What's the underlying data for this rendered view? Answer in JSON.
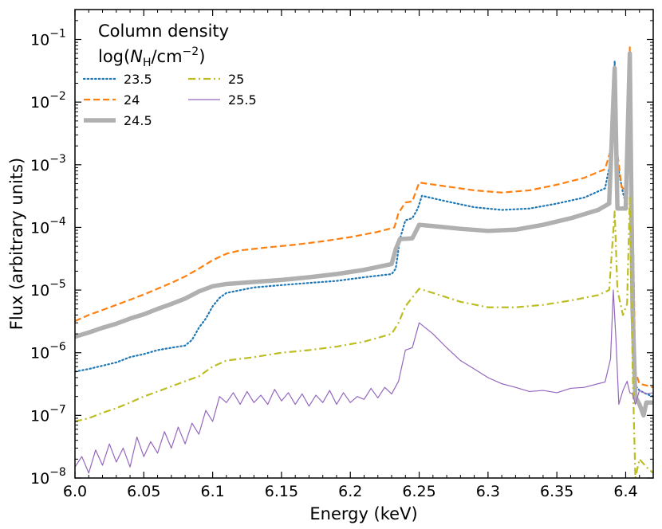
{
  "chart_data": {
    "type": "line",
    "xlabel": "Energy (keV)",
    "ylabel": "Flux (arbitrary units)",
    "xlim": [
      6.0,
      6.42
    ],
    "ylim": [
      1e-08,
      0.3
    ],
    "yscale": "log",
    "x_ticks": [
      "6.0",
      "6.05",
      "6.1",
      "6.15",
      "6.2",
      "6.25",
      "6.3",
      "6.35",
      "6.4"
    ],
    "y_ticks": [
      {
        "base": "10",
        "exp": "−8",
        "value": 1e-08
      },
      {
        "base": "10",
        "exp": "−7",
        "value": 1e-07
      },
      {
        "base": "10",
        "exp": "−6",
        "value": 1e-06
      },
      {
        "base": "10",
        "exp": "−5",
        "value": 1e-05
      },
      {
        "base": "10",
        "exp": "−4",
        "value": 0.0001
      },
      {
        "base": "10",
        "exp": "−3",
        "value": 0.001
      },
      {
        "base": "10",
        "exp": "−2",
        "value": 0.01
      },
      {
        "base": "10",
        "exp": "−1",
        "value": 0.1
      }
    ],
    "legend": {
      "title_line1": "Column density",
      "title_line2_prefix": "log(",
      "title_line2_N": "N",
      "title_line2_sub": "H",
      "title_line2_mid": "/cm",
      "title_line2_sup": "−2",
      "title_line2_suffix": ")",
      "placement": "top-left"
    },
    "series": [
      {
        "name": "23.5",
        "color": "#1f77b4",
        "style": "dotted",
        "points": [
          [
            6.0,
            5e-07
          ],
          [
            6.01,
            5.5e-07
          ],
          [
            6.02,
            6.2e-07
          ],
          [
            6.03,
            7e-07
          ],
          [
            6.04,
            8.5e-07
          ],
          [
            6.05,
            9.5e-07
          ],
          [
            6.06,
            1.1e-06
          ],
          [
            6.07,
            1.2e-06
          ],
          [
            6.08,
            1.3e-06
          ],
          [
            6.085,
            1.6e-06
          ],
          [
            6.09,
            2.5e-06
          ],
          [
            6.095,
            3.5e-06
          ],
          [
            6.1,
            5.5e-06
          ],
          [
            6.105,
            7.5e-06
          ],
          [
            6.11,
            9e-06
          ],
          [
            6.13,
            1.1e-05
          ],
          [
            6.15,
            1.2e-05
          ],
          [
            6.17,
            1.3e-05
          ],
          [
            6.19,
            1.4e-05
          ],
          [
            6.21,
            1.6e-05
          ],
          [
            6.23,
            1.8e-05
          ],
          [
            6.233,
            2.2e-05
          ],
          [
            6.236,
            6.5e-05
          ],
          [
            6.24,
            0.00013
          ],
          [
            6.245,
            0.00014
          ],
          [
            6.249,
            0.0002
          ],
          [
            6.252,
            0.00032
          ],
          [
            6.27,
            0.00026
          ],
          [
            6.29,
            0.00021
          ],
          [
            6.31,
            0.00019
          ],
          [
            6.33,
            0.0002
          ],
          [
            6.35,
            0.00024
          ],
          [
            6.37,
            0.0003
          ],
          [
            6.385,
            0.00042
          ],
          [
            6.39,
            0.0015
          ],
          [
            6.392,
            0.045
          ],
          [
            6.394,
            0.001
          ],
          [
            6.398,
            0.00036
          ],
          [
            6.401,
            0.0002
          ],
          [
            6.403,
            0.05
          ],
          [
            6.405,
            0.0002
          ],
          [
            6.407,
            3e-07
          ],
          [
            6.41,
            2.5e-07
          ],
          [
            6.415,
            2.2e-07
          ],
          [
            6.42,
            2e-07
          ]
        ]
      },
      {
        "name": "24",
        "color": "#ff7f0e",
        "style": "dashed",
        "points": [
          [
            6.0,
            3.2e-06
          ],
          [
            6.01,
            4e-06
          ],
          [
            6.02,
            4.8e-06
          ],
          [
            6.03,
            5.8e-06
          ],
          [
            6.04,
            7e-06
          ],
          [
            6.05,
            8.5e-06
          ],
          [
            6.06,
            1.05e-05
          ],
          [
            6.07,
            1.3e-05
          ],
          [
            6.08,
            1.65e-05
          ],
          [
            6.09,
            2.2e-05
          ],
          [
            6.1,
            3e-05
          ],
          [
            6.11,
            3.8e-05
          ],
          [
            6.12,
            4.3e-05
          ],
          [
            6.14,
            4.8e-05
          ],
          [
            6.16,
            5.3e-05
          ],
          [
            6.18,
            6e-05
          ],
          [
            6.2,
            7e-05
          ],
          [
            6.22,
            8.5e-05
          ],
          [
            6.232,
            0.0001
          ],
          [
            6.235,
            0.00017
          ],
          [
            6.24,
            0.00025
          ],
          [
            6.245,
            0.00026
          ],
          [
            6.25,
            0.00052
          ],
          [
            6.27,
            0.00045
          ],
          [
            6.29,
            0.00039
          ],
          [
            6.31,
            0.00036
          ],
          [
            6.33,
            0.00039
          ],
          [
            6.35,
            0.00048
          ],
          [
            6.37,
            0.00062
          ],
          [
            6.385,
            0.00085
          ],
          [
            6.39,
            0.002
          ],
          [
            6.392,
            0.032
          ],
          [
            6.394,
            0.0015
          ],
          [
            6.397,
            0.00045
          ],
          [
            6.401,
            0.00035
          ],
          [
            6.403,
            0.075
          ],
          [
            6.405,
            0.0002
          ],
          [
            6.407,
            5e-07
          ],
          [
            6.41,
            3.2e-07
          ],
          [
            6.415,
            3e-07
          ],
          [
            6.42,
            2.8e-07
          ]
        ]
      },
      {
        "name": "24.5",
        "color": "#b0b0b0",
        "style": "solid-thick",
        "points": [
          [
            6.0,
            1.8e-06
          ],
          [
            6.01,
            2.1e-06
          ],
          [
            6.02,
            2.5e-06
          ],
          [
            6.03,
            2.9e-06
          ],
          [
            6.04,
            3.5e-06
          ],
          [
            6.05,
            4.1e-06
          ],
          [
            6.06,
            5e-06
          ],
          [
            6.07,
            6e-06
          ],
          [
            6.08,
            7.3e-06
          ],
          [
            6.09,
            9.5e-06
          ],
          [
            6.1,
            1.15e-05
          ],
          [
            6.11,
            1.25e-05
          ],
          [
            6.13,
            1.35e-05
          ],
          [
            6.15,
            1.45e-05
          ],
          [
            6.17,
            1.6e-05
          ],
          [
            6.19,
            1.8e-05
          ],
          [
            6.21,
            2.1e-05
          ],
          [
            6.23,
            2.6e-05
          ],
          [
            6.233,
            4.5e-05
          ],
          [
            6.236,
            6.5e-05
          ],
          [
            6.245,
            6.7e-05
          ],
          [
            6.25,
            0.00011
          ],
          [
            6.26,
            0.000105
          ],
          [
            6.28,
            9.5e-05
          ],
          [
            6.3,
            8.8e-05
          ],
          [
            6.32,
            9.2e-05
          ],
          [
            6.34,
            0.00011
          ],
          [
            6.36,
            0.00014
          ],
          [
            6.38,
            0.00019
          ],
          [
            6.388,
            0.00024
          ],
          [
            6.392,
            0.035
          ],
          [
            6.394,
            0.0002
          ],
          [
            6.4,
            0.0002
          ],
          [
            6.403,
            0.06
          ],
          [
            6.405,
            5e-06
          ],
          [
            6.407,
            2e-07
          ],
          [
            6.41,
            1.5e-07
          ],
          [
            6.413,
            1e-07
          ],
          [
            6.415,
            1.6e-07
          ],
          [
            6.42,
            1.6e-07
          ]
        ]
      },
      {
        "name": "25",
        "color": "#bcbd22",
        "style": "dashdot",
        "points": [
          [
            6.0,
            8e-08
          ],
          [
            6.01,
            9e-08
          ],
          [
            6.02,
            1.1e-07
          ],
          [
            6.03,
            1.3e-07
          ],
          [
            6.04,
            1.6e-07
          ],
          [
            6.05,
            2e-07
          ],
          [
            6.06,
            2.4e-07
          ],
          [
            6.07,
            2.9e-07
          ],
          [
            6.08,
            3.5e-07
          ],
          [
            6.09,
            4.2e-07
          ],
          [
            6.1,
            6e-07
          ],
          [
            6.11,
            7.5e-07
          ],
          [
            6.13,
            8.5e-07
          ],
          [
            6.15,
            1e-06
          ],
          [
            6.17,
            1.1e-06
          ],
          [
            6.19,
            1.25e-06
          ],
          [
            6.21,
            1.5e-06
          ],
          [
            6.23,
            2e-06
          ],
          [
            6.235,
            3e-06
          ],
          [
            6.24,
            5.5e-06
          ],
          [
            6.25,
            1.05e-05
          ],
          [
            6.26,
            9e-06
          ],
          [
            6.28,
            6.5e-06
          ],
          [
            6.3,
            5.3e-06
          ],
          [
            6.32,
            5.3e-06
          ],
          [
            6.34,
            5.8e-06
          ],
          [
            6.36,
            6.8e-06
          ],
          [
            6.38,
            8.3e-06
          ],
          [
            6.388,
            1e-05
          ],
          [
            6.392,
            0.00018
          ],
          [
            6.394,
            1e-05
          ],
          [
            6.398,
            4e-06
          ],
          [
            6.401,
            6e-06
          ],
          [
            6.403,
            0.0003
          ],
          [
            6.405,
            6e-07
          ],
          [
            6.407,
            1e-08
          ],
          [
            6.41,
            2e-08
          ],
          [
            6.415,
            1.5e-08
          ],
          [
            6.42,
            1.2e-08
          ]
        ]
      },
      {
        "name": "25.5",
        "color": "#9467bd",
        "style": "solid-thin",
        "points": [
          [
            6.0,
            1.5e-08
          ],
          [
            6.005,
            2.2e-08
          ],
          [
            6.01,
            1.2e-08
          ],
          [
            6.015,
            2.8e-08
          ],
          [
            6.02,
            1.6e-08
          ],
          [
            6.025,
            3.5e-08
          ],
          [
            6.03,
            1.8e-08
          ],
          [
            6.035,
            3e-08
          ],
          [
            6.04,
            1.5e-08
          ],
          [
            6.045,
            4.5e-08
          ],
          [
            6.05,
            2.2e-08
          ],
          [
            6.055,
            3.8e-08
          ],
          [
            6.06,
            2.5e-08
          ],
          [
            6.065,
            5.5e-08
          ],
          [
            6.07,
            3e-08
          ],
          [
            6.075,
            6.5e-08
          ],
          [
            6.08,
            3.5e-08
          ],
          [
            6.085,
            7.5e-08
          ],
          [
            6.09,
            5e-08
          ],
          [
            6.095,
            1.2e-07
          ],
          [
            6.1,
            8e-08
          ],
          [
            6.105,
            2e-07
          ],
          [
            6.11,
            1.6e-07
          ],
          [
            6.115,
            2.3e-07
          ],
          [
            6.12,
            1.5e-07
          ],
          [
            6.125,
            2.4e-07
          ],
          [
            6.13,
            1.6e-07
          ],
          [
            6.135,
            2.1e-07
          ],
          [
            6.14,
            1.5e-07
          ],
          [
            6.145,
            2.6e-07
          ],
          [
            6.15,
            1.7e-07
          ],
          [
            6.155,
            2.3e-07
          ],
          [
            6.16,
            1.5e-07
          ],
          [
            6.165,
            2.2e-07
          ],
          [
            6.17,
            1.4e-07
          ],
          [
            6.175,
            2.1e-07
          ],
          [
            6.18,
            1.6e-07
          ],
          [
            6.185,
            2.5e-07
          ],
          [
            6.19,
            1.5e-07
          ],
          [
            6.195,
            2.3e-07
          ],
          [
            6.2,
            1.6e-07
          ],
          [
            6.205,
            2e-07
          ],
          [
            6.21,
            1.8e-07
          ],
          [
            6.215,
            2.7e-07
          ],
          [
            6.22,
            1.9e-07
          ],
          [
            6.225,
            2.8e-07
          ],
          [
            6.23,
            2.2e-07
          ],
          [
            6.235,
            3.5e-07
          ],
          [
            6.24,
            1.1e-06
          ],
          [
            6.245,
            1.2e-06
          ],
          [
            6.25,
            3e-06
          ],
          [
            6.26,
            2e-06
          ],
          [
            6.27,
            1.2e-06
          ],
          [
            6.28,
            7.5e-07
          ],
          [
            6.29,
            5.5e-07
          ],
          [
            6.3,
            4e-07
          ],
          [
            6.31,
            3.2e-07
          ],
          [
            6.32,
            2.8e-07
          ],
          [
            6.33,
            2.4e-07
          ],
          [
            6.34,
            2.5e-07
          ],
          [
            6.35,
            2.3e-07
          ],
          [
            6.36,
            2.7e-07
          ],
          [
            6.37,
            2.8e-07
          ],
          [
            6.38,
            3.2e-07
          ],
          [
            6.385,
            3.4e-07
          ],
          [
            6.389,
            8e-07
          ],
          [
            6.391,
            1e-05
          ],
          [
            6.393,
            1.5e-06
          ],
          [
            6.395,
            1.5e-07
          ],
          [
            6.398,
            2.5e-07
          ],
          [
            6.401,
            3.5e-07
          ],
          [
            6.403,
            2.3e-07
          ],
          [
            6.405,
            2.2e-07
          ],
          [
            6.407,
            1.5e-07
          ],
          [
            6.41,
            2.5e-07
          ],
          [
            6.415,
            2.2e-07
          ],
          [
            6.42,
            2.3e-07
          ]
        ]
      }
    ]
  }
}
